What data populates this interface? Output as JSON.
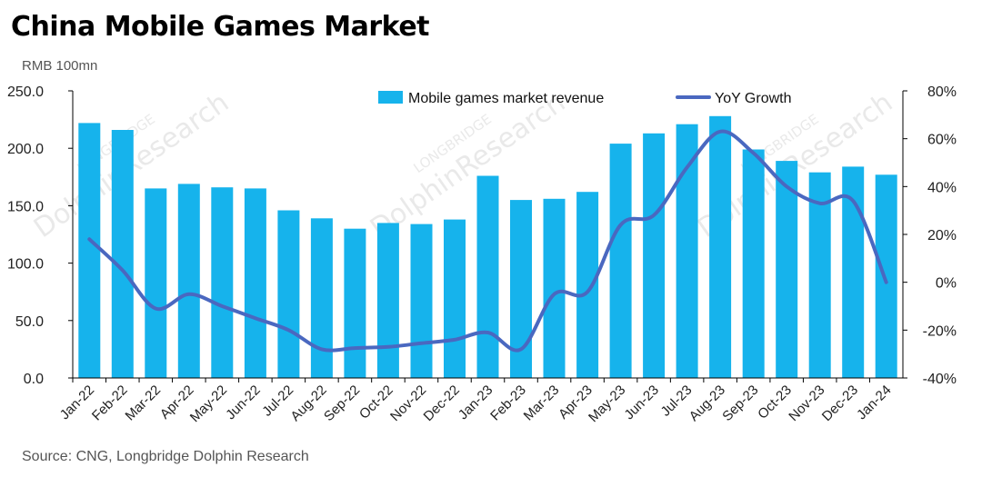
{
  "title": "China Mobile Games Market",
  "unit_label": "RMB 100mn",
  "source": "Source: CNG, Longbridge Dolphin Research",
  "watermark": {
    "line1": "DolphinResearch",
    "line2": "LONGBRIDGE"
  },
  "colors": {
    "bar": "#16B3EC",
    "line": "#4A68C0",
    "axis": "#000000"
  },
  "chart_data": {
    "type": "bar+line",
    "title": "China Mobile Games Market",
    "ylabel": "RMB 100mn",
    "categories": [
      "Jan-22",
      "Feb-22",
      "Mar-22",
      "Apr-22",
      "May-22",
      "Jun-22",
      "Jul-22",
      "Aug-22",
      "Sep-22",
      "Oct-22",
      "Nov-22",
      "Dec-22",
      "Jan-23",
      "Feb-23",
      "Mar-23",
      "Apr-23",
      "May-23",
      "Jun-23",
      "Jul-23",
      "Aug-23",
      "Sep-23",
      "Oct-23",
      "Nov-23",
      "Dec-23",
      "Jan-24"
    ],
    "series": [
      {
        "name": "Mobile games market revenue",
        "type": "bar",
        "axis": "left",
        "values": [
          222,
          216,
          165,
          169,
          166,
          165,
          146,
          139,
          130,
          135,
          134,
          138,
          176,
          155,
          156,
          162,
          204,
          213,
          221,
          228,
          199,
          189,
          179,
          184,
          177
        ]
      },
      {
        "name": "YoY Growth",
        "type": "line",
        "axis": "right",
        "values": [
          18,
          5,
          -11,
          -5,
          -10,
          -15,
          -20,
          -28,
          -27.5,
          -27,
          -25.5,
          -24,
          -21,
          -28,
          -5,
          -4,
          24,
          28,
          48,
          63,
          54,
          40,
          33,
          34,
          0
        ]
      }
    ],
    "y_left": {
      "min": 0,
      "max": 250,
      "ticks": [
        "0.0",
        "50.0",
        "100.0",
        "150.0",
        "200.0",
        "250.0"
      ]
    },
    "y_right": {
      "min": -40,
      "max": 80,
      "ticks": [
        "-40%",
        "-20%",
        "0%",
        "20%",
        "40%",
        "60%",
        "80%"
      ]
    },
    "legend": {
      "position": "top-center"
    },
    "grid": false
  }
}
